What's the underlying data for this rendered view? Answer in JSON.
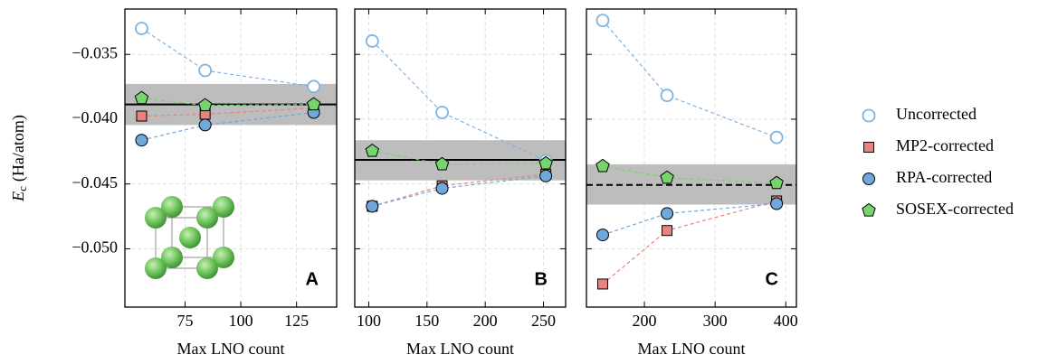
{
  "chart_data": [
    {
      "type": "line",
      "panel_label": "A",
      "x_label": "Max LNO count",
      "y_label": {
        "symbol": "E",
        "subscript": "c",
        "unit": "(Ha/atom)"
      },
      "x": [
        55.5,
        84,
        132.7
      ],
      "xlim": [
        48,
        143
      ],
      "xticks": [
        75,
        100,
        125
      ],
      "ylim": [
        -0.0545,
        -0.0315
      ],
      "yticks": [
        {
          "value": -0.035,
          "label": "−0.035"
        },
        {
          "value": -0.04,
          "label": "−0.040"
        },
        {
          "value": -0.045,
          "label": "−0.045"
        },
        {
          "value": -0.05,
          "label": "−0.050"
        }
      ],
      "grid": true,
      "reference": {
        "value": -0.03886,
        "band": [
          -0.04045,
          -0.03728
        ],
        "style": "solid"
      },
      "series": [
        {
          "name": "Uncorrected",
          "color": "#7fb3e0",
          "marker": "circle-open",
          "values": [
            -0.033,
            -0.03624,
            -0.03748
          ]
        },
        {
          "name": "MP2-corrected",
          "color": "#e8837f",
          "marker": "square",
          "values": [
            -0.03976,
            -0.03962,
            -0.03914
          ]
        },
        {
          "name": "RPA-corrected",
          "color": "#6fa8dc",
          "marker": "circle",
          "values": [
            -0.04162,
            -0.04045,
            -0.03948
          ]
        },
        {
          "name": "SOSEX-corrected",
          "color": "#77d36b",
          "marker": "pentagon",
          "values": [
            -0.03838,
            -0.03893,
            -0.03886
          ]
        }
      ]
    },
    {
      "type": "line",
      "panel_label": "B",
      "x_label": "Max LNO count",
      "x": [
        103,
        163,
        252
      ],
      "xlim": [
        88,
        269
      ],
      "xticks": [
        100,
        150,
        200,
        250
      ],
      "ylim": [
        -0.0545,
        -0.0315
      ],
      "yticks": [
        -0.035,
        -0.04,
        -0.045,
        -0.05
      ],
      "grid": true,
      "reference": {
        "value": -0.04314,
        "band": [
          -0.04472,
          -0.04162
        ],
        "style": "solid"
      },
      "series": [
        {
          "name": "Uncorrected",
          "color": "#7fb3e0",
          "marker": "circle-open",
          "values": [
            -0.03397,
            -0.03948,
            -0.04321
          ]
        },
        {
          "name": "MP2-corrected",
          "color": "#e8837f",
          "marker": "square",
          "values": [
            -0.04672,
            -0.04514,
            -0.04424
          ]
        },
        {
          "name": "RPA-corrected",
          "color": "#6fa8dc",
          "marker": "circle",
          "values": [
            -0.04672,
            -0.04534,
            -0.04438
          ]
        },
        {
          "name": "SOSEX-corrected",
          "color": "#77d36b",
          "marker": "pentagon",
          "values": [
            -0.04245,
            -0.04348,
            -0.04341
          ]
        }
      ]
    },
    {
      "type": "line",
      "panel_label": "C",
      "x_label": "Max LNO count",
      "x": [
        141,
        232,
        387
      ],
      "xlim": [
        118,
        415
      ],
      "xticks": [
        200,
        300,
        400
      ],
      "ylim": [
        -0.0545,
        -0.0315
      ],
      "yticks": [
        -0.035,
        -0.04,
        -0.045,
        -0.05
      ],
      "grid": true,
      "reference": {
        "value": -0.04507,
        "band": [
          -0.04659,
          -0.04348
        ],
        "style": "dashed"
      },
      "series": [
        {
          "name": "Uncorrected",
          "color": "#7fb3e0",
          "marker": "circle-open",
          "values": [
            -0.03238,
            -0.03817,
            -0.04141
          ]
        },
        {
          "name": "MP2-corrected",
          "color": "#e8837f",
          "marker": "square",
          "values": [
            -0.05272,
            -0.04859,
            -0.04631
          ]
        },
        {
          "name": "RPA-corrected",
          "color": "#6fa8dc",
          "marker": "circle",
          "values": [
            -0.04893,
            -0.04728,
            -0.04652
          ]
        },
        {
          "name": "SOSEX-corrected",
          "color": "#77d36b",
          "marker": "pentagon",
          "values": [
            -0.04362,
            -0.04452,
            -0.04493
          ]
        }
      ]
    }
  ]
}
